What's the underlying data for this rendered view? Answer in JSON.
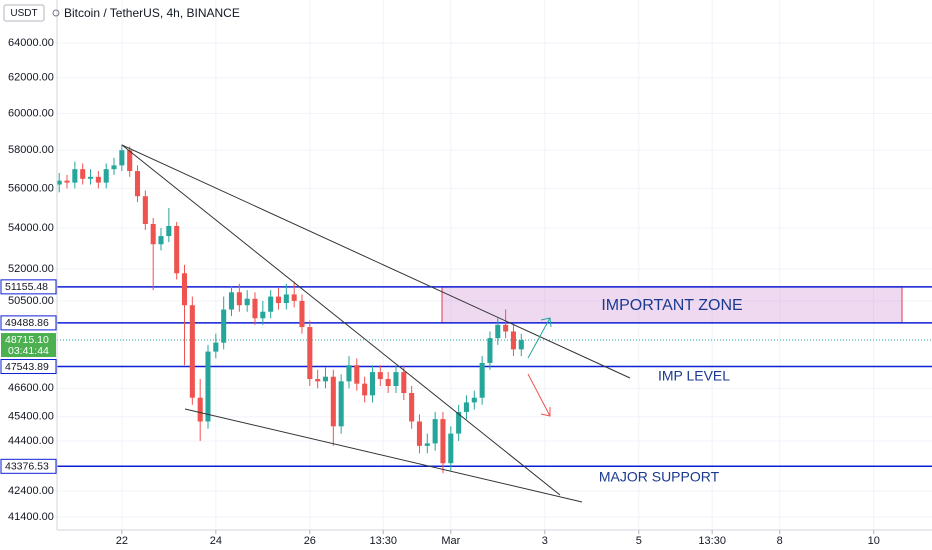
{
  "chart_data": {
    "type": "candlestick",
    "title": "Bitcoin / TetherUS, 4h, BINANCE",
    "currency": "USDT",
    "log_scale": true,
    "grid": true,
    "up_color": "#26a69a",
    "down_color": "#ef5350",
    "level_color": "#0d1fd6",
    "x": [
      20.667,
      20.833,
      21,
      21.167,
      21.333,
      21.5,
      21.667,
      21.833,
      22,
      22.167,
      22.333,
      22.5,
      22.667,
      22.833,
      23,
      23.167,
      23.333,
      23.5,
      23.667,
      23.833,
      24,
      24.167,
      24.333,
      24.5,
      24.667,
      24.833,
      25,
      25.167,
      25.333,
      25.5,
      25.667,
      25.833,
      26,
      26.167,
      26.333,
      26.5,
      26.667,
      26.833,
      27,
      27.167,
      27.333,
      27.5,
      27.667,
      27.833,
      28,
      28.167,
      28.333,
      28.5,
      28.667,
      28.833,
      29,
      29.167,
      29.333,
      29.5,
      29.667,
      29.833,
      30,
      30.167,
      30.333,
      30.5
    ],
    "open": [
      56200,
      56400,
      56300,
      57000,
      56500,
      56600,
      56300,
      57000,
      57200,
      58000,
      56900,
      55600,
      54200,
      53200,
      53600,
      54100,
      51800,
      50300,
      46200,
      45200,
      48200,
      48600,
      50100,
      50900,
      50300,
      50600,
      49700,
      50000,
      50700,
      50400,
      50800,
      50500,
      49300,
      47000,
      46900,
      47100,
      45000,
      46900,
      47600,
      46800,
      46300,
      47300,
      47000,
      46700,
      47300,
      46400,
      45200,
      44200,
      44300,
      45300,
      43500,
      44700,
      45600,
      46000,
      46200,
      47700,
      48800,
      49400,
      49100,
      48300
    ],
    "high": [
      56800,
      56700,
      57400,
      57300,
      57000,
      56900,
      57300,
      57600,
      58300,
      58200,
      57200,
      55900,
      54500,
      54000,
      55000,
      54300,
      52200,
      50700,
      47000,
      48500,
      49000,
      50700,
      51200,
      51300,
      51000,
      50900,
      50500,
      51000,
      51100,
      51300,
      51400,
      50800,
      49600,
      47400,
      47500,
      47400,
      47200,
      48000,
      47900,
      47100,
      47600,
      47600,
      47300,
      47600,
      47600,
      46700,
      45500,
      44700,
      45600,
      45600,
      45000,
      45900,
      46300,
      46500,
      48000,
      49100,
      49700,
      50100,
      49400,
      49000
    ],
    "low": [
      55800,
      56000,
      56000,
      56200,
      56200,
      56000,
      56000,
      56700,
      56900,
      56600,
      55300,
      53900,
      51000,
      52900,
      53300,
      51500,
      47600,
      45900,
      44400,
      44900,
      47900,
      48300,
      49800,
      50000,
      50000,
      49400,
      49400,
      49700,
      50100,
      50100,
      50200,
      49000,
      46700,
      46600,
      46600,
      44200,
      44700,
      46600,
      46500,
      46000,
      46000,
      46700,
      46400,
      46400,
      46100,
      44900,
      43900,
      43900,
      44000,
      43100,
      43200,
      44400,
      45300,
      45700,
      45900,
      47400,
      48500,
      48800,
      48000,
      48000
    ],
    "close": [
      56400,
      56300,
      57000,
      56500,
      56600,
      56300,
      57000,
      57200,
      58000,
      56900,
      55600,
      54200,
      53200,
      53600,
      54100,
      51800,
      50300,
      46200,
      45200,
      48200,
      48600,
      50100,
      50900,
      50300,
      50600,
      49700,
      50000,
      50700,
      50400,
      50800,
      50500,
      49300,
      47000,
      46900,
      47100,
      45000,
      46900,
      47600,
      46800,
      46300,
      47300,
      47000,
      46700,
      47300,
      46400,
      45200,
      44200,
      44300,
      45300,
      43500,
      44700,
      45600,
      46000,
      46200,
      47700,
      48800,
      49400,
      49100,
      48300,
      48715.1
    ],
    "ylim": [
      40910,
      66590
    ],
    "yticks": [
      {
        "value": 64000,
        "label": "64000.00"
      },
      {
        "value": 62000,
        "label": "62000.00"
      },
      {
        "value": 60000,
        "label": "60000.00"
      },
      {
        "value": 58000,
        "label": "58000.00"
      },
      {
        "value": 56000,
        "label": "56000.00"
      },
      {
        "value": 54000,
        "label": "54000.00"
      },
      {
        "value": 52000,
        "label": "52000.00"
      },
      {
        "value": 50500,
        "label": "50500.00"
      },
      {
        "value": 46600,
        "label": "46600.00"
      },
      {
        "value": 45400,
        "label": "45400.00"
      },
      {
        "value": 44400,
        "label": "44400.00"
      },
      {
        "value": 42400,
        "label": "42400.00"
      },
      {
        "value": 41400,
        "label": "41400.00"
      }
    ],
    "xlim": [
      20.62,
      39.24
    ],
    "xticks": [
      22,
      24,
      26,
      {
        "value": 27.5625,
        "label": "13:30"
      },
      {
        "value": 29,
        "label": "Mar"
      },
      {
        "value": 31,
        "label": "3"
      },
      {
        "value": 33,
        "label": "5"
      },
      {
        "value": 34.5625,
        "label": "13:30"
      },
      {
        "value": 36,
        "label": "8"
      },
      {
        "value": 38,
        "label": "10"
      }
    ],
    "levels": [
      51155.48,
      49488.86,
      47543.89,
      43376.53
    ],
    "current_price": {
      "value": 48715.1,
      "label": "48715.10"
    },
    "countdown": "03:41:44",
    "annotations": [
      "IMPORTANT ZONE",
      "IMP LEVEL",
      "MAJOR SUPPORT"
    ]
  }
}
